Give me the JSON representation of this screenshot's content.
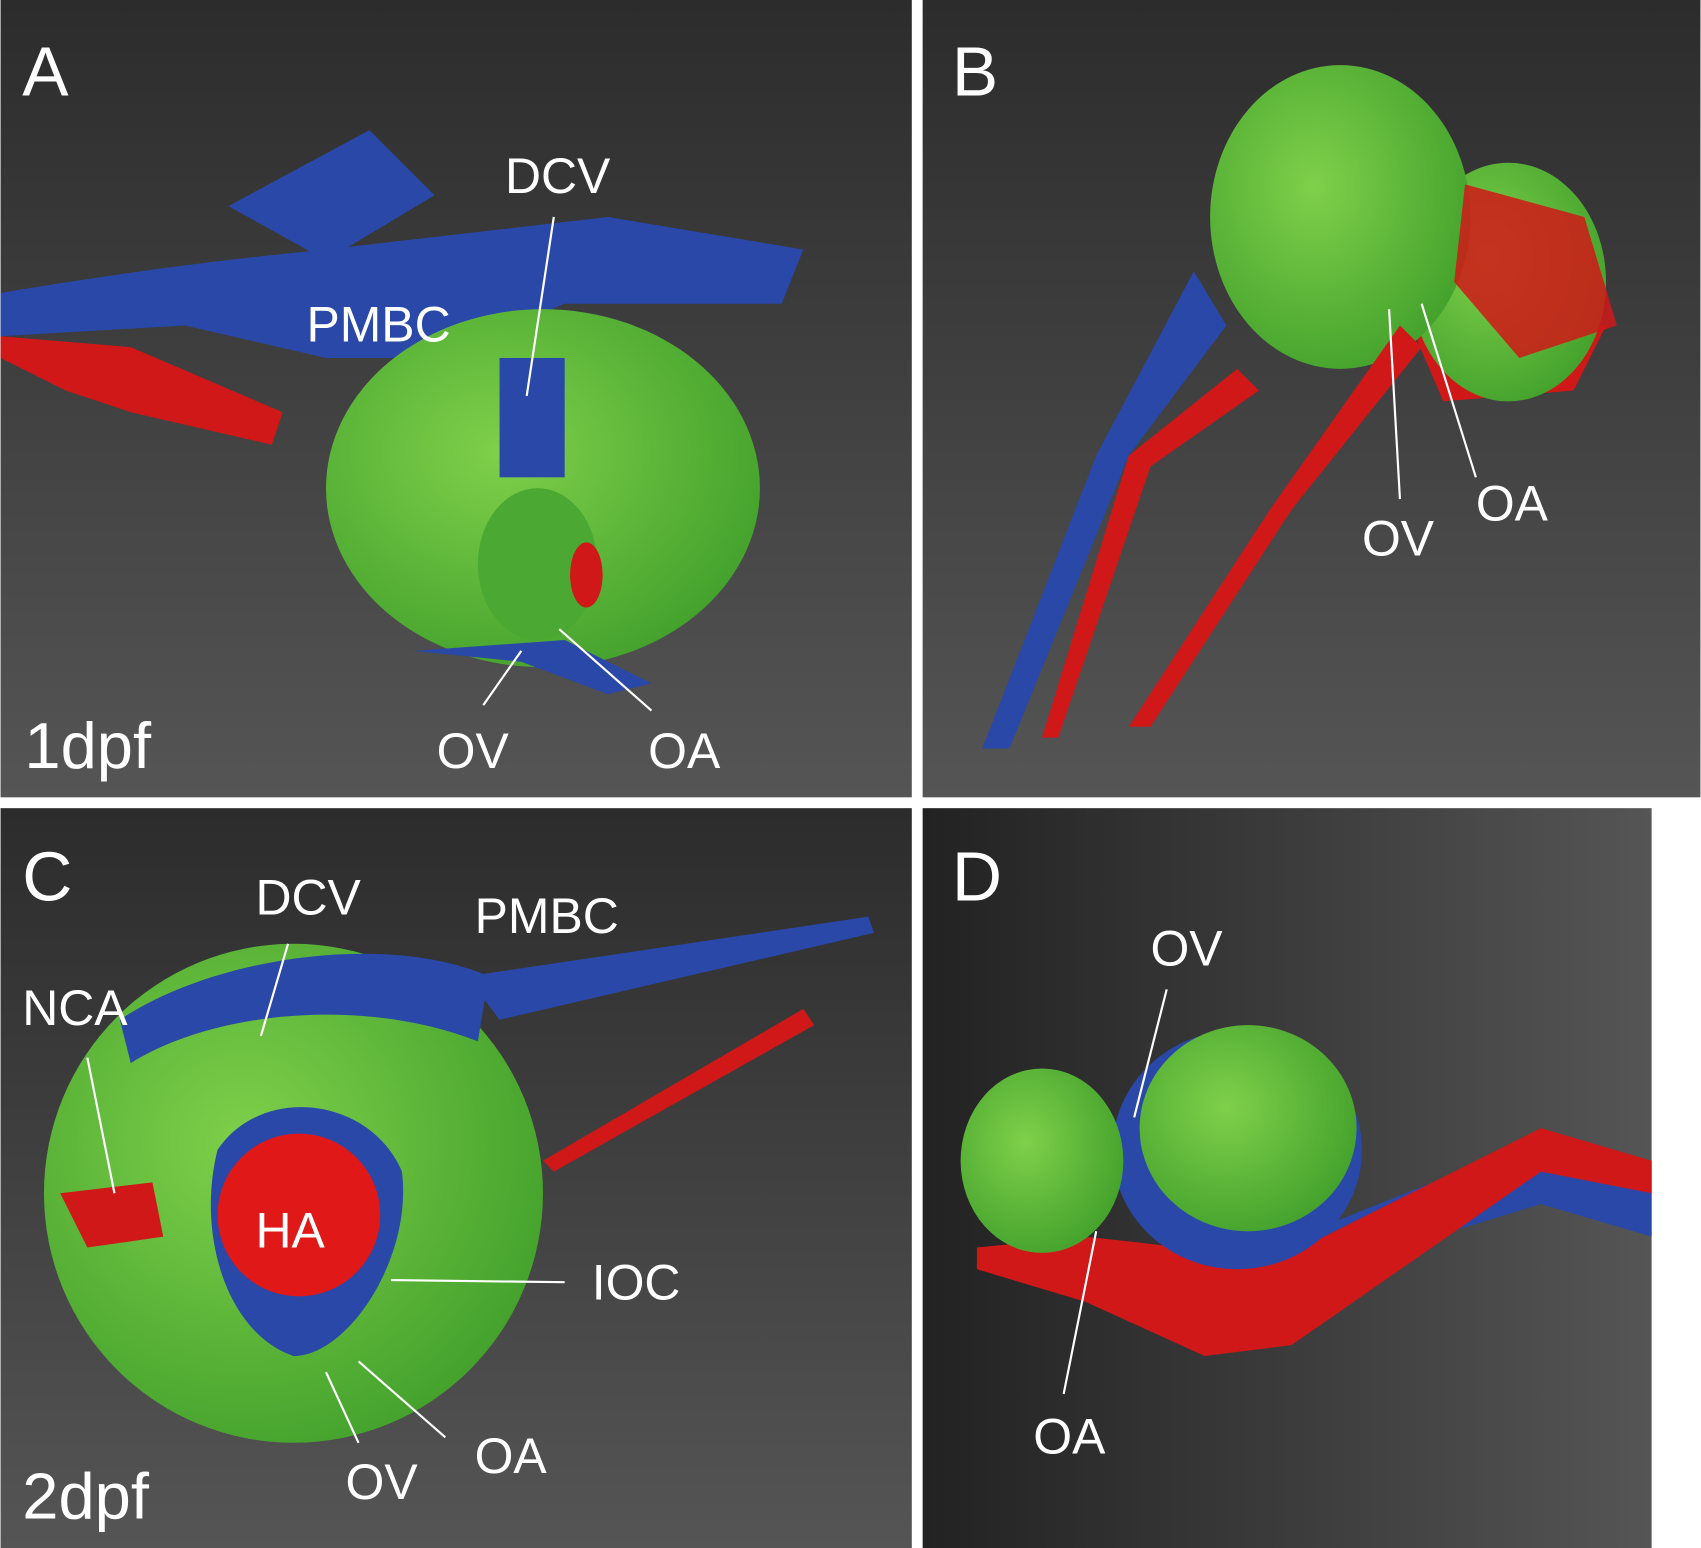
{
  "panels": [
    {
      "letter": "A",
      "stage": "1dpf",
      "labels": [
        "DCV",
        "PMBC",
        "OV",
        "OA"
      ]
    },
    {
      "letter": "B",
      "labels": [
        "OV",
        "OA"
      ]
    },
    {
      "letter": "C",
      "stage": "2dpf",
      "labels": [
        "DCV",
        "PMBC",
        "NCA",
        "HA",
        "IOC",
        "OV",
        "OA"
      ]
    },
    {
      "letter": "D",
      "labels": [
        "OV",
        "OA"
      ]
    }
  ]
}
